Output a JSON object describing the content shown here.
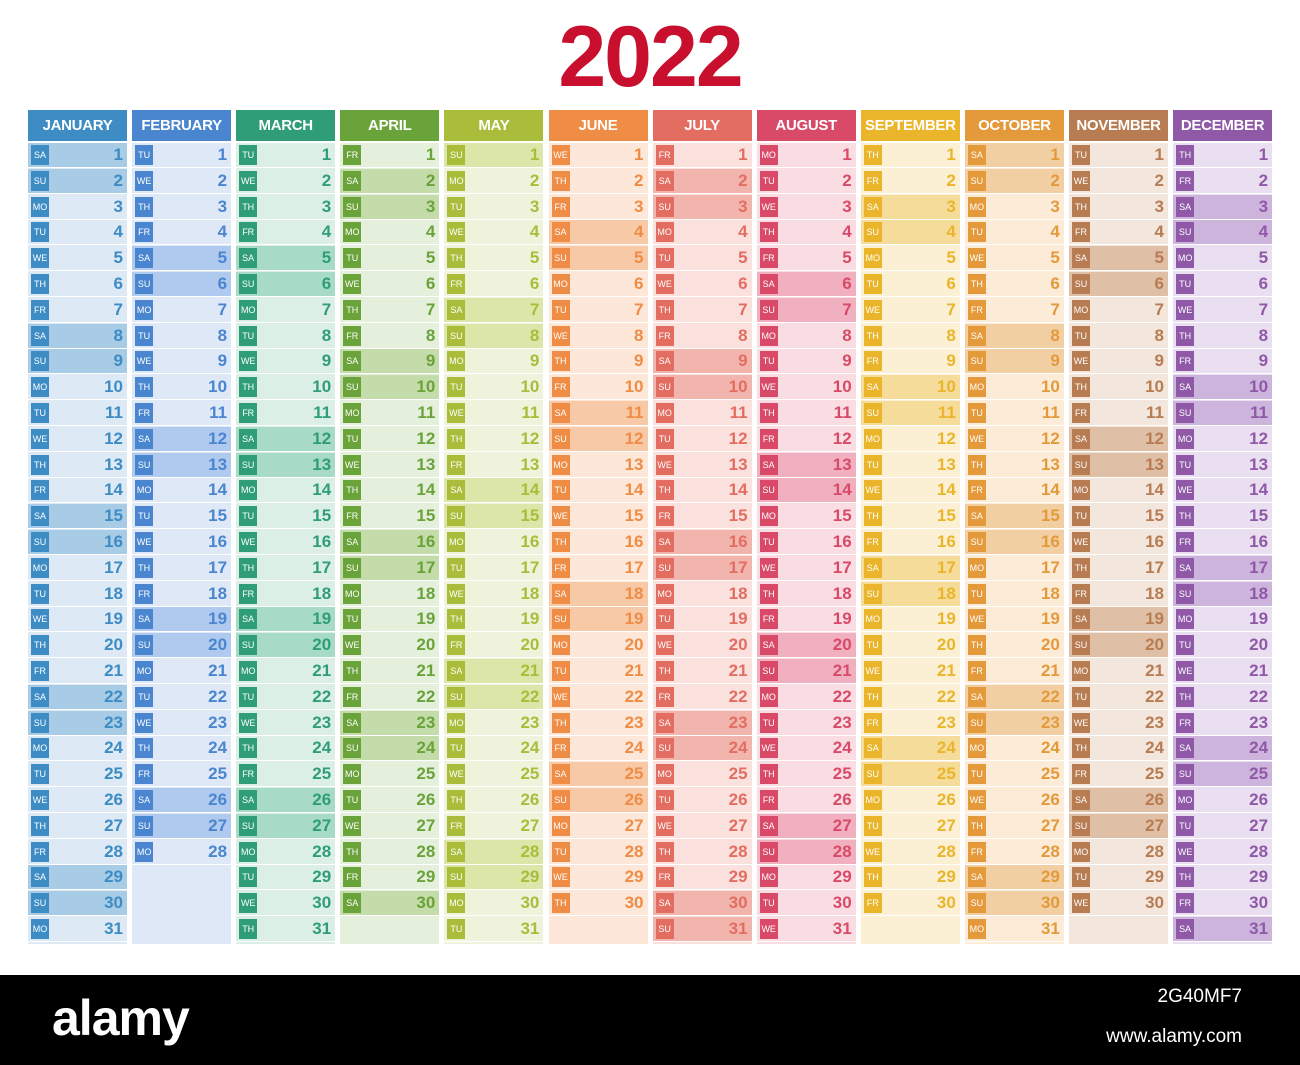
{
  "title": "2022",
  "title_color": "#c8102e",
  "weekday_labels": [
    "MO",
    "TU",
    "WE",
    "TH",
    "FR",
    "SA",
    "SU"
  ],
  "months": [
    {
      "name": "JANUARY",
      "days": 31,
      "first_weekday": 5,
      "color": "#3d8cc4",
      "light": "#dde9f4",
      "weekend": "#a8cbe6"
    },
    {
      "name": "FEBRUARY",
      "days": 28,
      "first_weekday": 1,
      "color": "#4a86cf",
      "light": "#dfe8f7",
      "weekend": "#b0c9ee"
    },
    {
      "name": "MARCH",
      "days": 31,
      "first_weekday": 1,
      "color": "#2f9e78",
      "light": "#dcefe7",
      "weekend": "#a8dbc6"
    },
    {
      "name": "APRIL",
      "days": 30,
      "first_weekday": 4,
      "color": "#6aa33a",
      "light": "#e5f0dc",
      "weekend": "#c4dcaa"
    },
    {
      "name": "MAY",
      "days": 31,
      "first_weekday": 6,
      "color": "#a9bd3b",
      "light": "#eff3db",
      "weekend": "#dce6a8"
    },
    {
      "name": "JUNE",
      "days": 30,
      "first_weekday": 2,
      "color": "#ef8c45",
      "light": "#fde7d8",
      "weekend": "#f8c9a6"
    },
    {
      "name": "JULY",
      "days": 31,
      "first_weekday": 4,
      "color": "#e36d61",
      "light": "#fbe1de",
      "weekend": "#f2b5ad"
    },
    {
      "name": "AUGUST",
      "days": 31,
      "first_weekday": 0,
      "color": "#d94a69",
      "light": "#f9dde3",
      "weekend": "#f0b0bf"
    },
    {
      "name": "SEPTEMBER",
      "days": 30,
      "first_weekday": 3,
      "color": "#eab52b",
      "light": "#fbf0d4",
      "weekend": "#f6dc9a"
    },
    {
      "name": "OCTOBER",
      "days": 31,
      "first_weekday": 5,
      "color": "#e49a3b",
      "light": "#fbebd7",
      "weekend": "#f1cfa3"
    },
    {
      "name": "NOVEMBER",
      "days": 30,
      "first_weekday": 1,
      "color": "#b77c52",
      "light": "#f3e6dd",
      "weekend": "#dfbfa6"
    },
    {
      "name": "DECEMBER",
      "days": 31,
      "first_weekday": 3,
      "color": "#8f59a8",
      "light": "#eadff0",
      "weekend": "#cdb4dc"
    }
  ],
  "footer": {
    "brand": "alamy",
    "code": "2G40MF7",
    "url": "www.alamy.com"
  }
}
